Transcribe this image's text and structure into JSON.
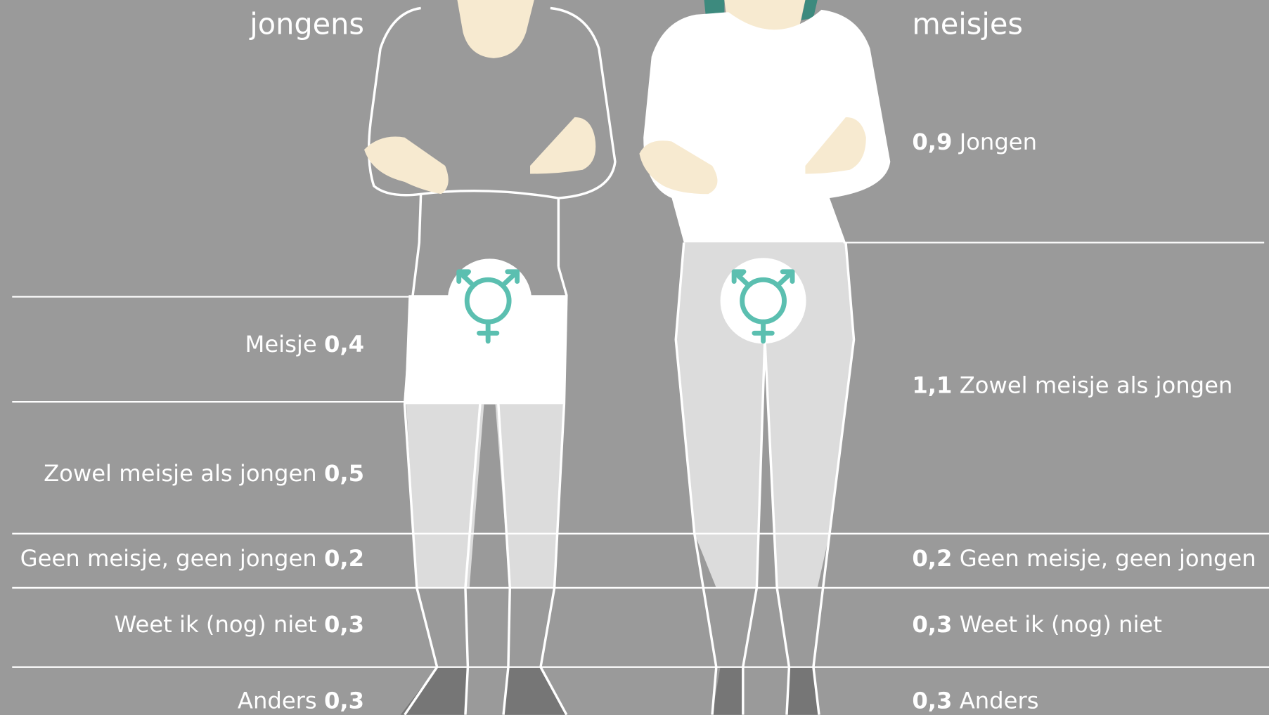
{
  "boys": {
    "title": "jongens",
    "answers": [
      {
        "label": "Meisje",
        "value": "0,4"
      },
      {
        "label": "Zowel meisje als jongen",
        "value": "0,5"
      },
      {
        "label": "Geen meisje, geen jongen",
        "value": "0,2"
      },
      {
        "label": "Weet ik (nog) niet",
        "value": "0,3"
      },
      {
        "label": "Anders",
        "value": "0,3"
      }
    ]
  },
  "girls": {
    "title": "meisjes",
    "answers": [
      {
        "label": "Jongen",
        "value": "0,9"
      },
      {
        "label": "Zowel meisje als jongen",
        "value": "1,1"
      },
      {
        "label": "Geen meisje, geen jongen",
        "value": "0,2"
      },
      {
        "label": "Weet ik (nog) niet",
        "value": "0,3"
      },
      {
        "label": "Anders",
        "value": "0,3"
      }
    ]
  }
}
